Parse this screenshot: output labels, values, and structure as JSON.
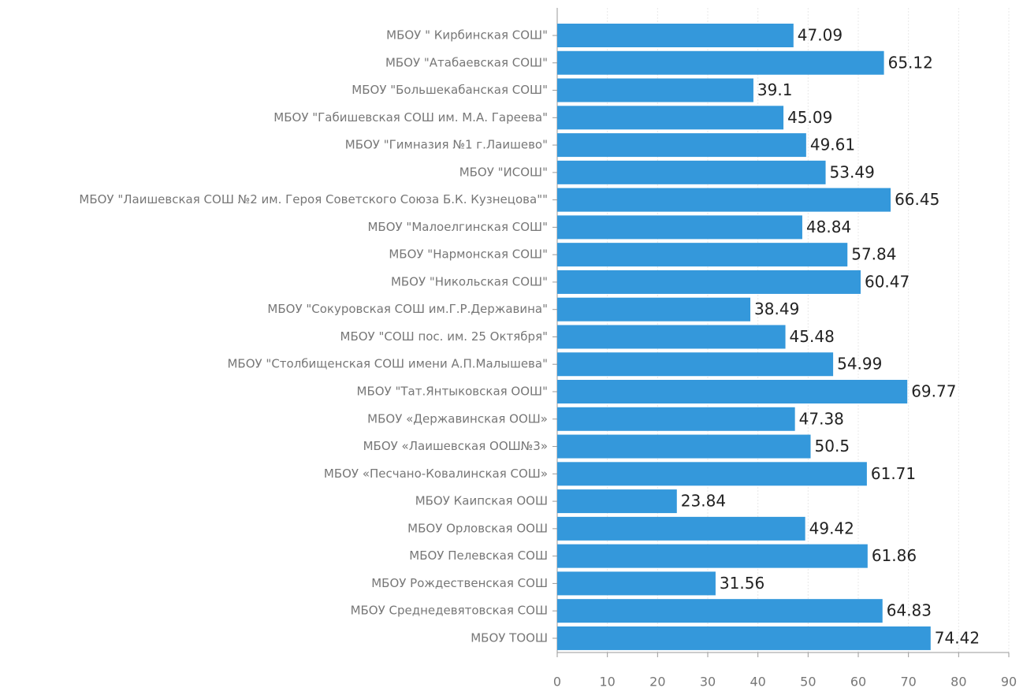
{
  "chart_data": {
    "type": "bar",
    "orientation": "horizontal",
    "categories": [
      "МБОУ \" Кирбинская СОШ\"",
      "МБОУ \"Атабаевская СОШ\"",
      "МБОУ \"Большекабанская СОШ\"",
      "МБОУ \"Габишевская СОШ им. М.А. Гареева\"",
      "МБОУ \"Гимназия №1 г.Лаишево\"",
      "МБОУ \"ИСОШ\"",
      "МБОУ \"Лаишевская СОШ №2 им. Героя Советского Союза Б.К. Кузнецова\"\"",
      "МБОУ \"Малоелгинская СОШ\"",
      "МБОУ \"Нармонская СОШ\"",
      "МБОУ \"Никольская СОШ\"",
      "МБОУ \"Сокуровская СОШ им.Г.Р.Державина\"",
      "МБОУ \"СОШ пос. им. 25 Октября\"",
      "МБОУ \"Столбищенская СОШ имени А.П.Малышева\"",
      "МБОУ \"Тат.Янтыковская ООШ\"",
      "МБОУ «Державинская ООШ»",
      "МБОУ «Лаишевская ООШ№3»",
      "МБОУ «Песчано-Ковалинская СОШ»",
      "МБОУ Каипская ООШ",
      "МБОУ Орловская ООШ",
      "МБОУ Пелевская СОШ",
      "МБОУ Рождественская СОШ",
      "МБОУ Среднедевятовская СОШ",
      "МБОУ ТООШ"
    ],
    "values": [
      47.09,
      65.12,
      39.1,
      45.09,
      49.61,
      53.49,
      66.45,
      48.84,
      57.84,
      60.47,
      38.49,
      45.48,
      54.99,
      69.77,
      47.38,
      50.5,
      61.71,
      23.84,
      49.42,
      61.86,
      31.56,
      64.83,
      74.42
    ],
    "color": "#3498db",
    "xlim": [
      0,
      90
    ],
    "xticks": [
      0,
      10,
      20,
      30,
      40,
      50,
      60,
      70,
      80,
      90
    ],
    "grid": true
  }
}
